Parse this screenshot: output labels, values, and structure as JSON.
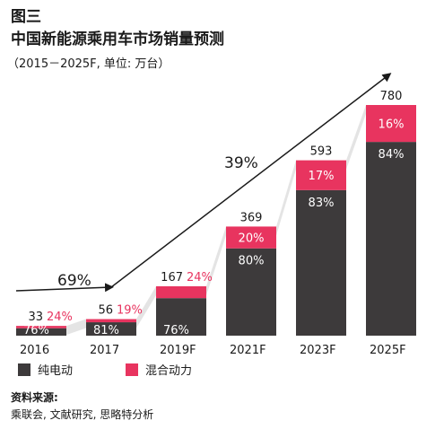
{
  "chart_data": {
    "type": "bar",
    "stacked": true,
    "figure_label": "图三",
    "title": "中国新能源乘用车市场销量预测",
    "subtitle": "（2015－2025F, 单位: 万台）",
    "categories": [
      "2016",
      "2017",
      "2019F",
      "2021F",
      "2023F",
      "2025F"
    ],
    "totals": [
      33,
      56,
      167,
      369,
      593,
      780
    ],
    "total_labels": [
      "33",
      "56",
      "167",
      "369",
      "593",
      "780"
    ],
    "series": [
      {
        "name": "纯电动",
        "color": "#3d3a3b",
        "shares": [
          76,
          81,
          76,
          80,
          83,
          84
        ],
        "labels": [
          "76%",
          "81%",
          "76%",
          "80%",
          "83%",
          "84%"
        ]
      },
      {
        "name": "混合动力",
        "color": "#e8345f",
        "shares": [
          24,
          19,
          24,
          20,
          17,
          16
        ],
        "labels": [
          "24%",
          "19%",
          "24%",
          "20%",
          "17%",
          "16%"
        ]
      }
    ],
    "annotations": [
      {
        "text": "69%",
        "from": "2016",
        "to": "2017"
      },
      {
        "text": "39%",
        "from": "2017",
        "to": "2025F"
      }
    ],
    "ylim": [
      0,
      780
    ],
    "grid": false,
    "legend_position": "bottom-left"
  },
  "source": {
    "label": "资料来源:",
    "text": "乘联会, 文献研究, 思略特分析"
  }
}
